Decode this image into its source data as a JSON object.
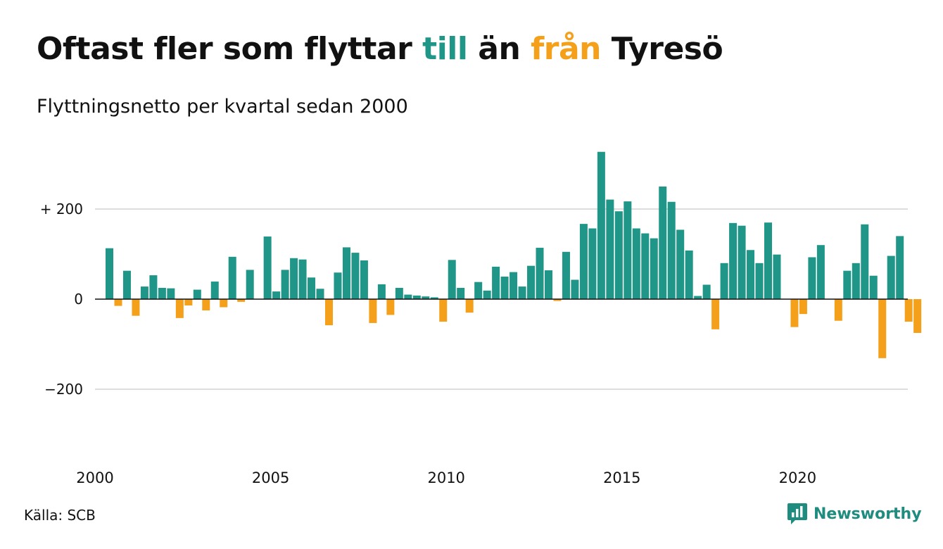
{
  "header": {
    "title_part1": "Oftast fler som flyttar ",
    "title_till": "till",
    "title_part2": " än ",
    "title_fran": "från",
    "title_part3": " Tyresö",
    "subtitle": "Flyttningsnetto per kvartal sedan 2000"
  },
  "footer": {
    "source": "Källa: SCB",
    "brand": "Newsworthy",
    "brand_icon": "bar-chart-speech-icon"
  },
  "colors": {
    "positive": "#1f9688",
    "negative": "#f5a01a",
    "grid": "#dddddd",
    "brand": "#1f8c80"
  },
  "chart_data": {
    "type": "bar",
    "title": "Oftast fler som flyttar till än från Tyresö",
    "subtitle": "Flyttningsnetto per kvartal sedan 2000",
    "start_year": 2000,
    "x_ticks": [
      "2000",
      "2005",
      "2010",
      "2015",
      "2020"
    ],
    "y_ticks": [
      {
        "value": 200,
        "label": "+ 200"
      },
      {
        "value": 0,
        "label": "0"
      },
      {
        "value": -200,
        "label": "−200"
      }
    ],
    "ylim": [
      -360,
      330
    ],
    "grid": true,
    "values": [
      113,
      -15,
      63,
      -37,
      28,
      53,
      25,
      24,
      -42,
      -14,
      21,
      -25,
      39,
      -18,
      94,
      -6,
      65,
      0,
      139,
      17,
      65,
      91,
      88,
      48,
      23,
      -58,
      59,
      115,
      103,
      86,
      -53,
      33,
      -35,
      25,
      10,
      8,
      6,
      4,
      -50,
      87,
      25,
      -30,
      38,
      19,
      72,
      50,
      60,
      28,
      74,
      114,
      64,
      -4,
      105,
      43,
      167,
      157,
      327,
      221,
      195,
      217,
      157,
      146,
      135,
      250,
      216,
      154,
      108,
      7,
      32,
      -67,
      80,
      169,
      163,
      109,
      80,
      170,
      99,
      0,
      -62,
      -33,
      93,
      120,
      0,
      -48,
      63,
      80,
      166,
      52,
      -131,
      96,
      140,
      -50,
      -75
    ]
  }
}
